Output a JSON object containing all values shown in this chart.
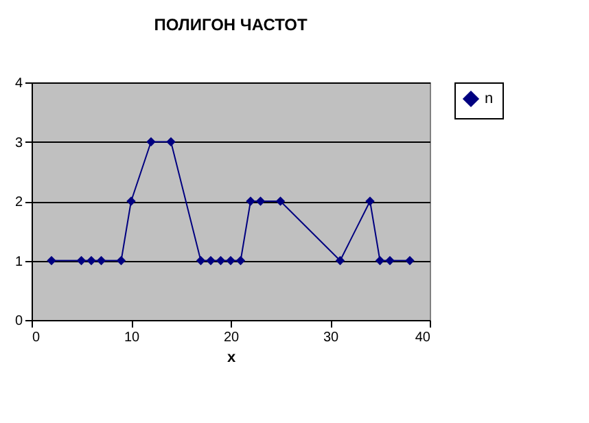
{
  "chart_data": {
    "type": "line",
    "title": "ПОЛИГОН ЧАСТОТ",
    "xlabel": "x",
    "x": [
      2,
      5,
      6,
      7,
      9,
      10,
      12,
      14,
      17,
      18,
      19,
      20,
      21,
      22,
      23,
      25,
      31,
      34,
      35,
      36,
      38
    ],
    "series": [
      {
        "name": "n",
        "color": "#000080",
        "values": [
          1,
          1,
          1,
          1,
          1,
          2,
          3,
          3,
          1,
          1,
          1,
          1,
          1,
          2,
          2,
          2,
          1,
          2,
          1,
          1,
          1
        ]
      }
    ],
    "xlim": [
      0,
      40
    ],
    "xticks": [
      0,
      10,
      20,
      30,
      40
    ],
    "ylim": [
      0,
      4
    ],
    "yticks": [
      0,
      1,
      2,
      3,
      4
    ],
    "grid": "y",
    "legend": "right",
    "marker": "diamond",
    "line_style": "solid"
  }
}
